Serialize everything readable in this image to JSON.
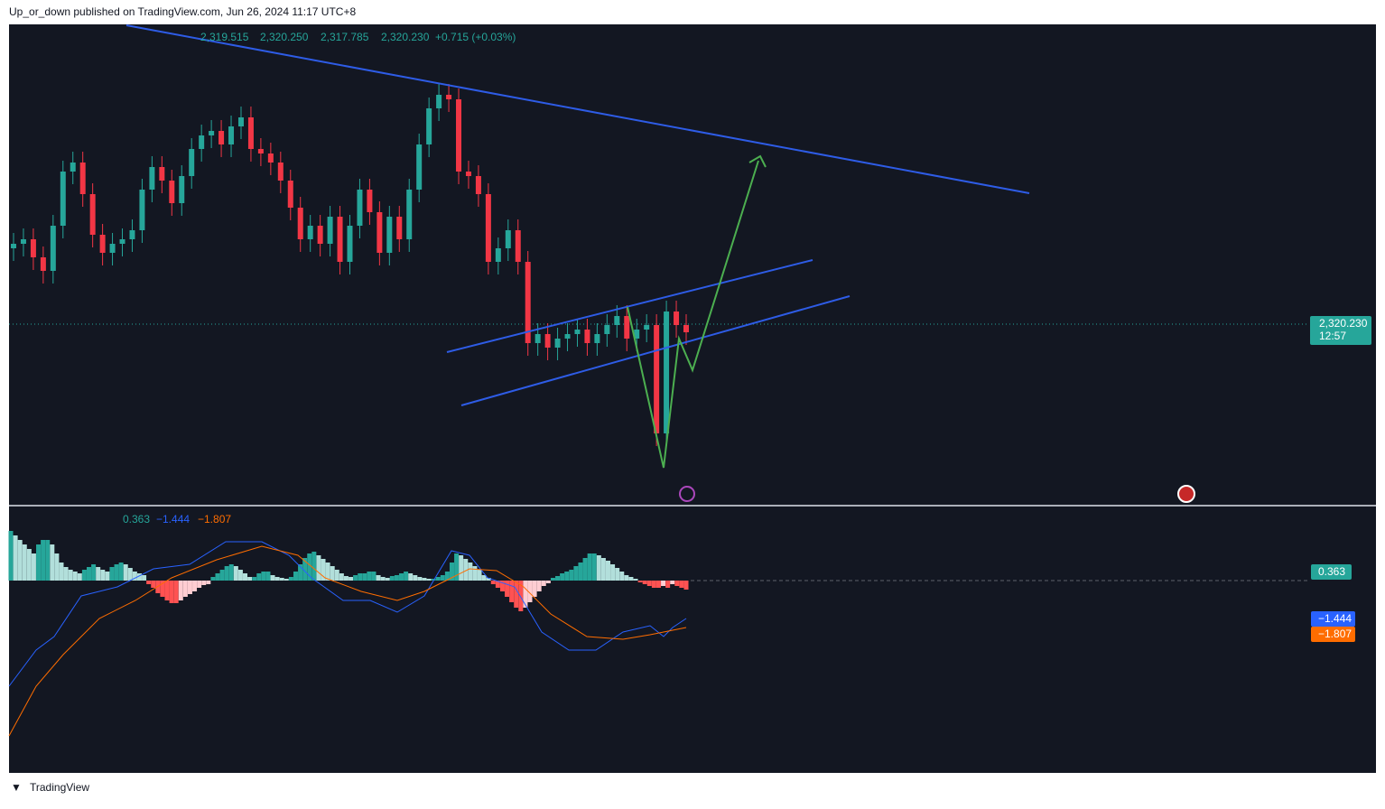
{
  "header": {
    "publisher": "Up_or_down published on TradingView.com, Jun 26, 2024 11:17 UTC+8"
  },
  "legend": {
    "open": "2,319.515",
    "high": "2,320.250",
    "low": "2,317.785",
    "close": "2,320.230",
    "change": "+0.715 (+0.03%)"
  },
  "price_label": {
    "price": "2,320.230",
    "countdown": "12:57"
  },
  "macd": {
    "histogram": "0.363",
    "macd": "−1.444",
    "signal": "−1.807"
  },
  "footer": {
    "brand": "TradingView"
  }
}
